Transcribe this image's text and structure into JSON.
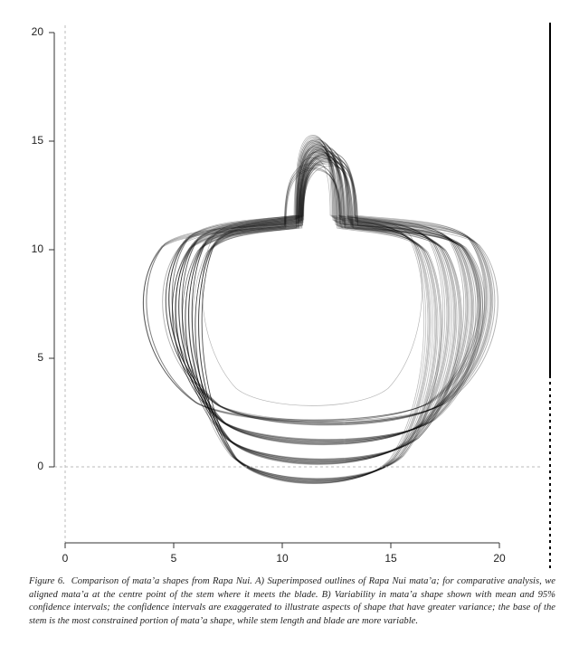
{
  "chart_data": {
    "type": "outline",
    "xlim": [
      -0.5,
      22
    ],
    "ylim": [
      -3.5,
      20.5
    ],
    "xticks": [
      0,
      5,
      10,
      15,
      20
    ],
    "yticks": [
      0,
      5,
      10,
      15,
      20
    ]
  },
  "caption": {
    "label": "Figure 6.",
    "text": "Comparison of mata’a shapes from Rapa Nui. A) Superimposed outlines of Rapa Nui mata’a; for comparative analysis, we aligned mata’a at the centre point of the stem where it meets the blade. B) Variability in mata’a shape shown with mean and 95% confidence intervals; the confidence intervals are exaggerated to illustrate aspects of shape that have greater variance; the base of the stem is the most constrained portion of mata’a shape, while stem length and blade are more variable."
  }
}
